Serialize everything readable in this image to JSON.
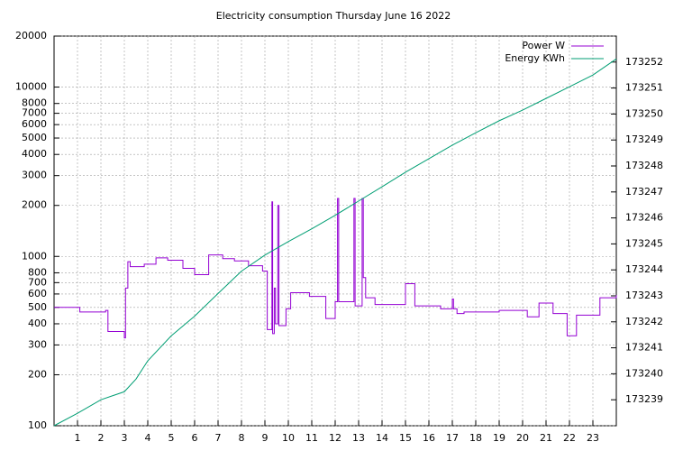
{
  "chart_data": {
    "type": "line",
    "title": "Electricity consumption Thursday June 16 2022",
    "xlim": [
      0,
      24
    ],
    "xticks": [
      1,
      2,
      3,
      4,
      5,
      6,
      7,
      8,
      9,
      10,
      11,
      12,
      13,
      14,
      15,
      16,
      17,
      18,
      19,
      20,
      21,
      22,
      23
    ],
    "ylim": [
      100,
      20000
    ],
    "log_y": true,
    "yticks": [
      100,
      200,
      300,
      400,
      500,
      600,
      700,
      800,
      1000,
      2000,
      3000,
      4000,
      5000,
      6000,
      7000,
      8000,
      10000,
      20000
    ],
    "y2lim": [
      173238,
      173253
    ],
    "y2ticks": [
      173239,
      173240,
      173241,
      173242,
      173243,
      173244,
      173245,
      173246,
      173247,
      173248,
      173249,
      173250,
      173251,
      173252
    ],
    "grid": true,
    "legend": "top-right",
    "series": [
      {
        "name": "Power W",
        "color": "#9400d3",
        "step": true,
        "x": [
          0,
          1.1,
          2.2,
          2.3,
          3.0,
          3.05,
          3.15,
          3.25,
          3.85,
          4.35,
          4.85,
          5.5,
          6.0,
          6.6,
          7.2,
          7.7,
          8.3,
          8.9,
          9.1,
          9.3,
          9.33,
          9.4,
          9.45,
          9.55,
          9.6,
          9.9,
          10.1,
          10.9,
          11.6,
          12.0,
          12.1,
          12.15,
          12.8,
          12.85,
          13.15,
          13.2,
          13.3,
          13.7,
          15.0,
          15.4,
          16.5,
          17.0,
          17.05,
          17.2,
          17.5,
          19.0,
          20.2,
          20.7,
          21.3,
          21.9,
          22.3,
          23.3,
          24
        ],
        "values": [
          500,
          470,
          480,
          360,
          330,
          650,
          930,
          870,
          900,
          980,
          950,
          850,
          780,
          1020,
          970,
          940,
          880,
          820,
          370,
          2100,
          350,
          650,
          400,
          2000,
          390,
          490,
          610,
          580,
          430,
          540,
          2200,
          540,
          2200,
          510,
          2200,
          750,
          570,
          520,
          690,
          510,
          490,
          560,
          490,
          460,
          470,
          480,
          440,
          530,
          460,
          340,
          450,
          570,
          590
        ]
      },
      {
        "name": "Energy KWh",
        "color": "#009e73",
        "axis": "y2",
        "x": [
          0,
          1,
          2,
          3,
          3.5,
          4,
          5,
          6,
          7,
          8,
          9,
          10,
          11,
          12,
          13,
          14,
          15,
          16,
          17,
          18,
          19,
          20,
          21,
          22,
          23,
          24
        ],
        "values": [
          173238.0,
          173238.48,
          173239.0,
          173239.31,
          173239.8,
          173240.5,
          173241.46,
          173242.22,
          173243.09,
          173243.95,
          173244.57,
          173245.09,
          173245.58,
          173246.1,
          173246.65,
          173247.2,
          173247.76,
          173248.28,
          173248.8,
          173249.28,
          173249.74,
          173250.15,
          173250.6,
          173251.05,
          173251.5,
          173252.12
        ]
      }
    ]
  }
}
